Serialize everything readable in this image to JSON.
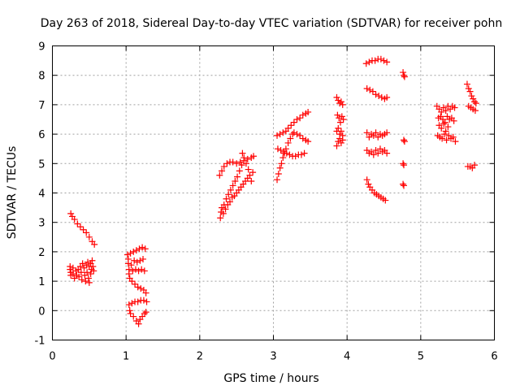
{
  "chart_data": {
    "type": "scatter",
    "title": "Day 263 of 2018, Sidereal Day-to-day VTEC variation (SDTVAR) for receiver pohn",
    "xlabel": "GPS time / hours",
    "ylabel": "SDTVAR / TECUs",
    "xlim": [
      0,
      6
    ],
    "ylim": [
      -1,
      9
    ],
    "xticks": [
      "0",
      "1",
      "2",
      "3",
      "4",
      "5",
      "6"
    ],
    "yticks": [
      "-1",
      "0",
      "1",
      "2",
      "3",
      "4",
      "5",
      "6",
      "7",
      "8",
      "9"
    ],
    "grid": true,
    "marker": "plus",
    "color": "#ff0000",
    "series": [
      {
        "points": [
          [
            0.25,
            3.3
          ],
          [
            0.27,
            3.2
          ],
          [
            0.3,
            3.1
          ],
          [
            0.34,
            2.95
          ],
          [
            0.38,
            2.85
          ],
          [
            0.42,
            2.75
          ],
          [
            0.46,
            2.65
          ],
          [
            0.5,
            2.5
          ],
          [
            0.54,
            2.35
          ],
          [
            0.57,
            2.25
          ],
          [
            0.24,
            1.5
          ],
          [
            0.24,
            1.4
          ],
          [
            0.25,
            1.3
          ],
          [
            0.25,
            1.2
          ],
          [
            0.28,
            1.45
          ],
          [
            0.28,
            1.25
          ],
          [
            0.3,
            1.1
          ],
          [
            0.32,
            1.35
          ],
          [
            0.33,
            1.2
          ],
          [
            0.35,
            1.4
          ],
          [
            0.36,
            1.15
          ],
          [
            0.38,
            1.5
          ],
          [
            0.39,
            1.3
          ],
          [
            0.4,
            1.05
          ],
          [
            0.41,
            1.6
          ],
          [
            0.43,
            1.45
          ],
          [
            0.44,
            1.2
          ],
          [
            0.45,
            1.0
          ],
          [
            0.46,
            1.55
          ],
          [
            0.47,
            1.3
          ],
          [
            0.48,
            1.65
          ],
          [
            0.49,
            1.1
          ],
          [
            0.5,
            1.5
          ],
          [
            0.5,
            0.95
          ],
          [
            0.52,
            1.6
          ],
          [
            0.52,
            1.25
          ],
          [
            0.53,
            1.4
          ],
          [
            0.54,
            1.7
          ],
          [
            0.55,
            1.5
          ],
          [
            0.56,
            1.35
          ],
          [
            1.02,
            1.9
          ],
          [
            1.03,
            1.75
          ],
          [
            1.03,
            1.6
          ],
          [
            1.04,
            1.4
          ],
          [
            1.04,
            1.25
          ],
          [
            1.05,
            1.1
          ],
          [
            1.06,
            1.95
          ],
          [
            1.07,
            1.55
          ],
          [
            1.08,
            1.0
          ],
          [
            1.09,
            1.35
          ],
          [
            1.1,
            2.0
          ],
          [
            1.11,
            1.7
          ],
          [
            1.12,
            0.9
          ],
          [
            1.13,
            1.4
          ],
          [
            1.14,
            2.05
          ],
          [
            1.15,
            1.65
          ],
          [
            1.16,
            0.8
          ],
          [
            1.17,
            1.35
          ],
          [
            1.18,
            2.1
          ],
          [
            1.19,
            1.7
          ],
          [
            1.2,
            0.75
          ],
          [
            1.21,
            1.4
          ],
          [
            1.22,
            2.15
          ],
          [
            1.23,
            1.75
          ],
          [
            1.24,
            0.7
          ],
          [
            1.25,
            1.35
          ],
          [
            1.26,
            2.1
          ],
          [
            1.27,
            0.6
          ],
          [
            1.04,
            0.2
          ],
          [
            1.05,
            0.0
          ],
          [
            1.06,
            -0.1
          ],
          [
            1.08,
            0.25
          ],
          [
            1.1,
            -0.2
          ],
          [
            1.12,
            0.3
          ],
          [
            1.14,
            -0.35
          ],
          [
            1.16,
            0.3
          ],
          [
            1.17,
            -0.45
          ],
          [
            1.19,
            -0.3
          ],
          [
            1.2,
            0.35
          ],
          [
            1.22,
            -0.2
          ],
          [
            1.24,
            0.35
          ],
          [
            1.25,
            -0.1
          ],
          [
            1.27,
            -0.05
          ],
          [
            1.28,
            0.3
          ],
          [
            2.27,
            4.6
          ],
          [
            2.3,
            4.75
          ],
          [
            2.33,
            4.9
          ],
          [
            2.37,
            5.0
          ],
          [
            2.41,
            5.05
          ],
          [
            2.45,
            5.05
          ],
          [
            2.5,
            5.0
          ],
          [
            2.55,
            5.05
          ],
          [
            2.6,
            5.1
          ],
          [
            2.65,
            5.15
          ],
          [
            2.7,
            5.2
          ],
          [
            2.73,
            5.25
          ],
          [
            2.28,
            3.15
          ],
          [
            2.29,
            3.35
          ],
          [
            2.3,
            3.5
          ],
          [
            2.32,
            3.3
          ],
          [
            2.33,
            3.6
          ],
          [
            2.35,
            3.45
          ],
          [
            2.36,
            3.8
          ],
          [
            2.38,
            3.6
          ],
          [
            2.39,
            3.95
          ],
          [
            2.41,
            3.7
          ],
          [
            2.42,
            4.1
          ],
          [
            2.44,
            3.85
          ],
          [
            2.45,
            4.25
          ],
          [
            2.47,
            3.9
          ],
          [
            2.48,
            4.4
          ],
          [
            2.5,
            4.0
          ],
          [
            2.51,
            4.55
          ],
          [
            2.53,
            4.1
          ],
          [
            2.54,
            4.75
          ],
          [
            2.56,
            4.2
          ],
          [
            2.57,
            4.95
          ],
          [
            2.58,
            5.35
          ],
          [
            2.59,
            4.3
          ],
          [
            2.6,
            5.2
          ],
          [
            2.62,
            4.4
          ],
          [
            2.63,
            5.0
          ],
          [
            2.65,
            4.5
          ],
          [
            2.66,
            4.8
          ],
          [
            2.68,
            4.6
          ],
          [
            2.7,
            4.4
          ],
          [
            2.72,
            4.7
          ],
          [
            3.05,
            4.45
          ],
          [
            3.07,
            4.65
          ],
          [
            3.09,
            4.85
          ],
          [
            3.11,
            5.0
          ],
          [
            3.13,
            5.2
          ],
          [
            3.15,
            5.35
          ],
          [
            3.17,
            5.5
          ],
          [
            3.2,
            5.7
          ],
          [
            3.23,
            5.85
          ],
          [
            3.26,
            6.0
          ],
          [
            3.06,
            5.5
          ],
          [
            3.1,
            5.45
          ],
          [
            3.14,
            5.4
          ],
          [
            3.18,
            5.35
          ],
          [
            3.22,
            5.3
          ],
          [
            3.26,
            5.25
          ],
          [
            3.3,
            5.25
          ],
          [
            3.34,
            5.3
          ],
          [
            3.38,
            5.3
          ],
          [
            3.42,
            5.35
          ],
          [
            3.05,
            5.95
          ],
          [
            3.09,
            6.0
          ],
          [
            3.13,
            6.05
          ],
          [
            3.17,
            6.1
          ],
          [
            3.2,
            6.2
          ],
          [
            3.24,
            6.3
          ],
          [
            3.28,
            6.4
          ],
          [
            3.32,
            6.5
          ],
          [
            3.36,
            6.55
          ],
          [
            3.4,
            6.65
          ],
          [
            3.44,
            6.7
          ],
          [
            3.47,
            6.75
          ],
          [
            3.28,
            6.05
          ],
          [
            3.32,
            6.0
          ],
          [
            3.36,
            5.95
          ],
          [
            3.4,
            5.85
          ],
          [
            3.44,
            5.8
          ],
          [
            3.47,
            5.75
          ],
          [
            3.86,
            7.25
          ],
          [
            3.88,
            7.15
          ],
          [
            3.9,
            7.05
          ],
          [
            3.92,
            7.1
          ],
          [
            3.94,
            7.0
          ],
          [
            3.87,
            6.65
          ],
          [
            3.89,
            6.55
          ],
          [
            3.91,
            6.4
          ],
          [
            3.93,
            6.6
          ],
          [
            3.95,
            6.5
          ],
          [
            3.86,
            6.1
          ],
          [
            3.88,
            6.2
          ],
          [
            3.9,
            6.0
          ],
          [
            3.92,
            6.1
          ],
          [
            3.94,
            5.95
          ],
          [
            3.86,
            5.6
          ],
          [
            3.88,
            5.75
          ],
          [
            3.9,
            5.85
          ],
          [
            3.92,
            5.7
          ],
          [
            3.94,
            5.8
          ],
          [
            4.26,
            8.4
          ],
          [
            4.3,
            8.45
          ],
          [
            4.34,
            8.5
          ],
          [
            4.38,
            8.5
          ],
          [
            4.42,
            8.55
          ],
          [
            4.46,
            8.55
          ],
          [
            4.5,
            8.5
          ],
          [
            4.54,
            8.45
          ],
          [
            4.27,
            7.55
          ],
          [
            4.31,
            7.5
          ],
          [
            4.35,
            7.45
          ],
          [
            4.39,
            7.35
          ],
          [
            4.43,
            7.3
          ],
          [
            4.47,
            7.25
          ],
          [
            4.51,
            7.2
          ],
          [
            4.54,
            7.25
          ],
          [
            4.27,
            6.05
          ],
          [
            4.3,
            5.9
          ],
          [
            4.33,
            6.0
          ],
          [
            4.36,
            5.95
          ],
          [
            4.39,
            6.05
          ],
          [
            4.42,
            5.9
          ],
          [
            4.45,
            6.0
          ],
          [
            4.48,
            5.95
          ],
          [
            4.51,
            6.0
          ],
          [
            4.54,
            6.05
          ],
          [
            4.27,
            5.45
          ],
          [
            4.3,
            5.35
          ],
          [
            4.33,
            5.4
          ],
          [
            4.36,
            5.3
          ],
          [
            4.39,
            5.45
          ],
          [
            4.42,
            5.35
          ],
          [
            4.45,
            5.5
          ],
          [
            4.48,
            5.4
          ],
          [
            4.51,
            5.45
          ],
          [
            4.54,
            5.35
          ],
          [
            4.27,
            4.45
          ],
          [
            4.29,
            4.3
          ],
          [
            4.31,
            4.2
          ],
          [
            4.34,
            4.1
          ],
          [
            4.37,
            4.0
          ],
          [
            4.4,
            3.95
          ],
          [
            4.43,
            3.9
          ],
          [
            4.46,
            3.85
          ],
          [
            4.49,
            3.8
          ],
          [
            4.52,
            3.75
          ],
          [
            4.76,
            8.1
          ],
          [
            4.77,
            8.0
          ],
          [
            4.78,
            7.95
          ],
          [
            4.77,
            5.8
          ],
          [
            4.78,
            5.75
          ],
          [
            4.76,
            5.0
          ],
          [
            4.77,
            4.95
          ],
          [
            4.76,
            4.3
          ],
          [
            4.77,
            4.25
          ],
          [
            5.22,
            6.95
          ],
          [
            5.25,
            6.85
          ],
          [
            5.28,
            6.75
          ],
          [
            5.31,
            6.9
          ],
          [
            5.34,
            6.8
          ],
          [
            5.37,
            6.95
          ],
          [
            5.4,
            6.85
          ],
          [
            5.43,
            6.95
          ],
          [
            5.46,
            6.9
          ],
          [
            5.24,
            6.55
          ],
          [
            5.27,
            6.6
          ],
          [
            5.3,
            6.5
          ],
          [
            5.33,
            6.4
          ],
          [
            5.36,
            6.6
          ],
          [
            5.39,
            6.5
          ],
          [
            5.42,
            6.55
          ],
          [
            5.45,
            6.45
          ],
          [
            5.25,
            6.3
          ],
          [
            5.28,
            6.2
          ],
          [
            5.31,
            6.35
          ],
          [
            5.34,
            6.1
          ],
          [
            5.37,
            6.25
          ],
          [
            5.23,
            5.95
          ],
          [
            5.26,
            5.9
          ],
          [
            5.29,
            5.85
          ],
          [
            5.32,
            6.0
          ],
          [
            5.35,
            5.8
          ],
          [
            5.38,
            5.95
          ],
          [
            5.41,
            5.85
          ],
          [
            5.44,
            5.9
          ],
          [
            5.47,
            5.75
          ],
          [
            5.63,
            7.7
          ],
          [
            5.65,
            7.55
          ],
          [
            5.67,
            7.45
          ],
          [
            5.69,
            7.3
          ],
          [
            5.71,
            7.2
          ],
          [
            5.73,
            7.1
          ],
          [
            5.75,
            7.05
          ],
          [
            5.65,
            6.95
          ],
          [
            5.68,
            6.9
          ],
          [
            5.71,
            6.85
          ],
          [
            5.74,
            6.8
          ],
          [
            5.64,
            4.9
          ],
          [
            5.67,
            4.9
          ],
          [
            5.7,
            4.85
          ],
          [
            5.73,
            4.95
          ]
        ]
      }
    ]
  }
}
